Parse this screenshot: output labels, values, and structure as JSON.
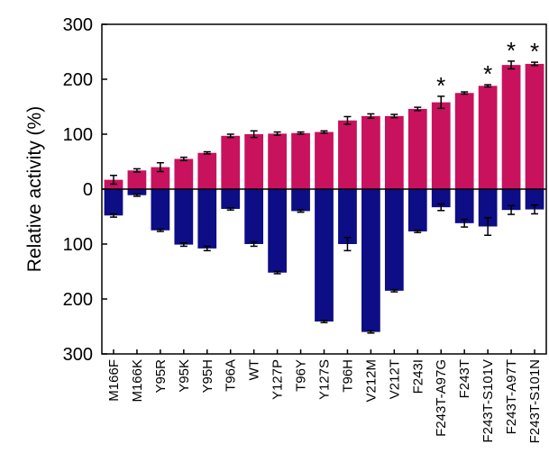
{
  "chart_data": {
    "type": "bar",
    "ylabel": "Relative activity (%)",
    "y_ticks": [
      "300",
      "200",
      "100",
      "0",
      "100",
      "200",
      "300"
    ],
    "ylim": [
      -300,
      300
    ],
    "categories": [
      "M166F",
      "M166K",
      "Y95R",
      "Y95K",
      "Y95H",
      "T96A",
      "WT",
      "Y127P",
      "T96Y",
      "Y127S",
      "T96H",
      "V212M",
      "V212T",
      "F243I",
      "F243T-A97G",
      "F243T",
      "F243T-S101V",
      "F243T-A97T",
      "F243T-S101N"
    ],
    "series": [
      {
        "color": "#c8125e",
        "values": [
          17,
          34,
          40,
          55,
          66,
          97,
          100,
          101,
          102,
          104,
          125,
          133,
          133,
          146,
          158,
          175,
          188,
          226,
          228
        ],
        "errors": [
          8,
          3,
          8,
          3,
          2,
          3,
          6,
          3,
          2,
          2,
          7,
          4,
          3,
          3,
          11,
          2,
          2,
          7,
          3
        ]
      },
      {
        "color": "#0d0d85",
        "values": [
          -48,
          -11,
          -75,
          -101,
          -108,
          -36,
          -100,
          -152,
          -40,
          -241,
          -100,
          -260,
          -185,
          -77,
          -33,
          -62,
          -68,
          -38,
          -37
        ],
        "errors": [
          3,
          2,
          2,
          3,
          4,
          2,
          4,
          2,
          2,
          2,
          12,
          2,
          2,
          2,
          6,
          7,
          16,
          8,
          8
        ]
      }
    ],
    "annotations": [
      {
        "category": "F243T-A97G",
        "text": "*"
      },
      {
        "category": "F243T-S101V",
        "text": "*"
      },
      {
        "category": "F243T-A97T",
        "text": "*"
      },
      {
        "category": "F243T-S101N",
        "text": "*"
      }
    ],
    "grid": false,
    "legend": "none"
  }
}
